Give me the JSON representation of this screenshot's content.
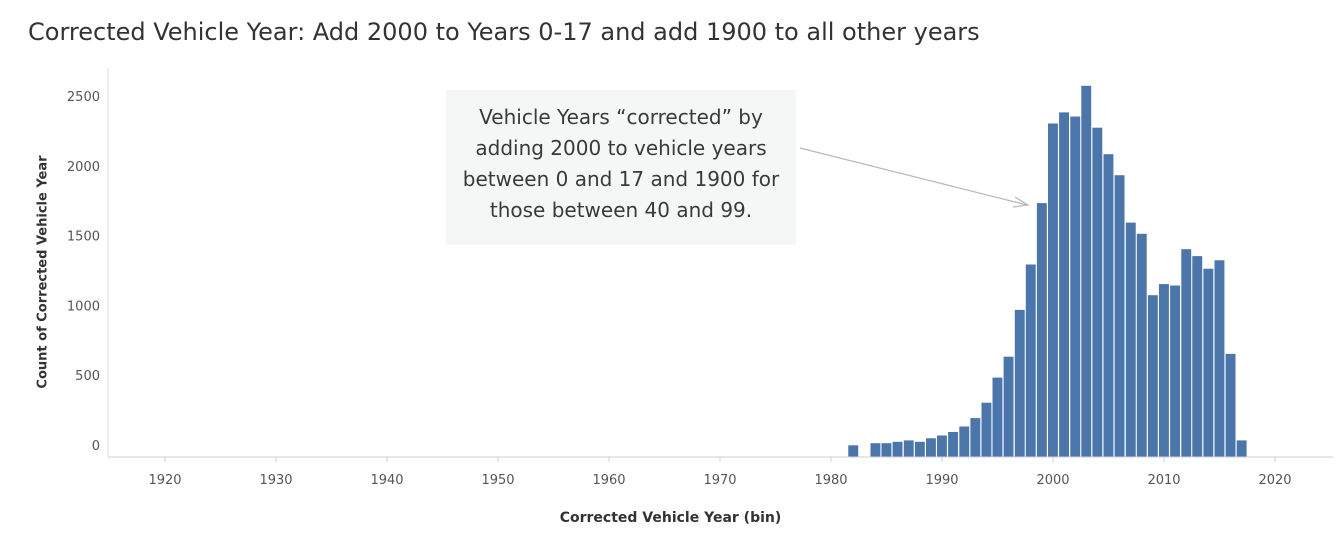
{
  "chart_data": {
    "type": "bar",
    "title": "Corrected Vehicle Year: Add 2000 to Years 0-17 and add 1900 to all other years",
    "xlabel": "Corrected Vehicle Year (bin)",
    "ylabel": "Count of Corrected Vehicle Year",
    "xlim": [
      1915,
      2025
    ],
    "ylim": [
      0,
      2600
    ],
    "x_ticks": [
      1920,
      1930,
      1940,
      1950,
      1960,
      1970,
      1980,
      1990,
      2000,
      2010,
      2020
    ],
    "y_ticks": [
      0,
      500,
      1000,
      1500,
      2000,
      2500
    ],
    "bar_color": "#4a76ab",
    "grid": false,
    "annotation": "Vehicle Years “corrected” by\nadding 2000 to vehicle years\nbetween 0 and 17 and 1900 for\nthose between 40 and 99.",
    "x": [
      1982,
      1984,
      1985,
      1986,
      1987,
      1988,
      1989,
      1990,
      1991,
      1992,
      1993,
      1994,
      1995,
      1996,
      1997,
      1998,
      1999,
      2000,
      2001,
      2002,
      2003,
      2004,
      2005,
      2006,
      2007,
      2008,
      2009,
      2010,
      2011,
      2012,
      2013,
      2014,
      2015,
      2016,
      2017
    ],
    "values": [
      5,
      20,
      20,
      30,
      40,
      30,
      55,
      75,
      100,
      140,
      200,
      310,
      490,
      640,
      975,
      1300,
      1740,
      2310,
      2390,
      2360,
      2580,
      2280,
      2090,
      1940,
      1600,
      1520,
      1080,
      1160,
      1150,
      1410,
      1360,
      1270,
      1330,
      660,
      40
    ]
  }
}
